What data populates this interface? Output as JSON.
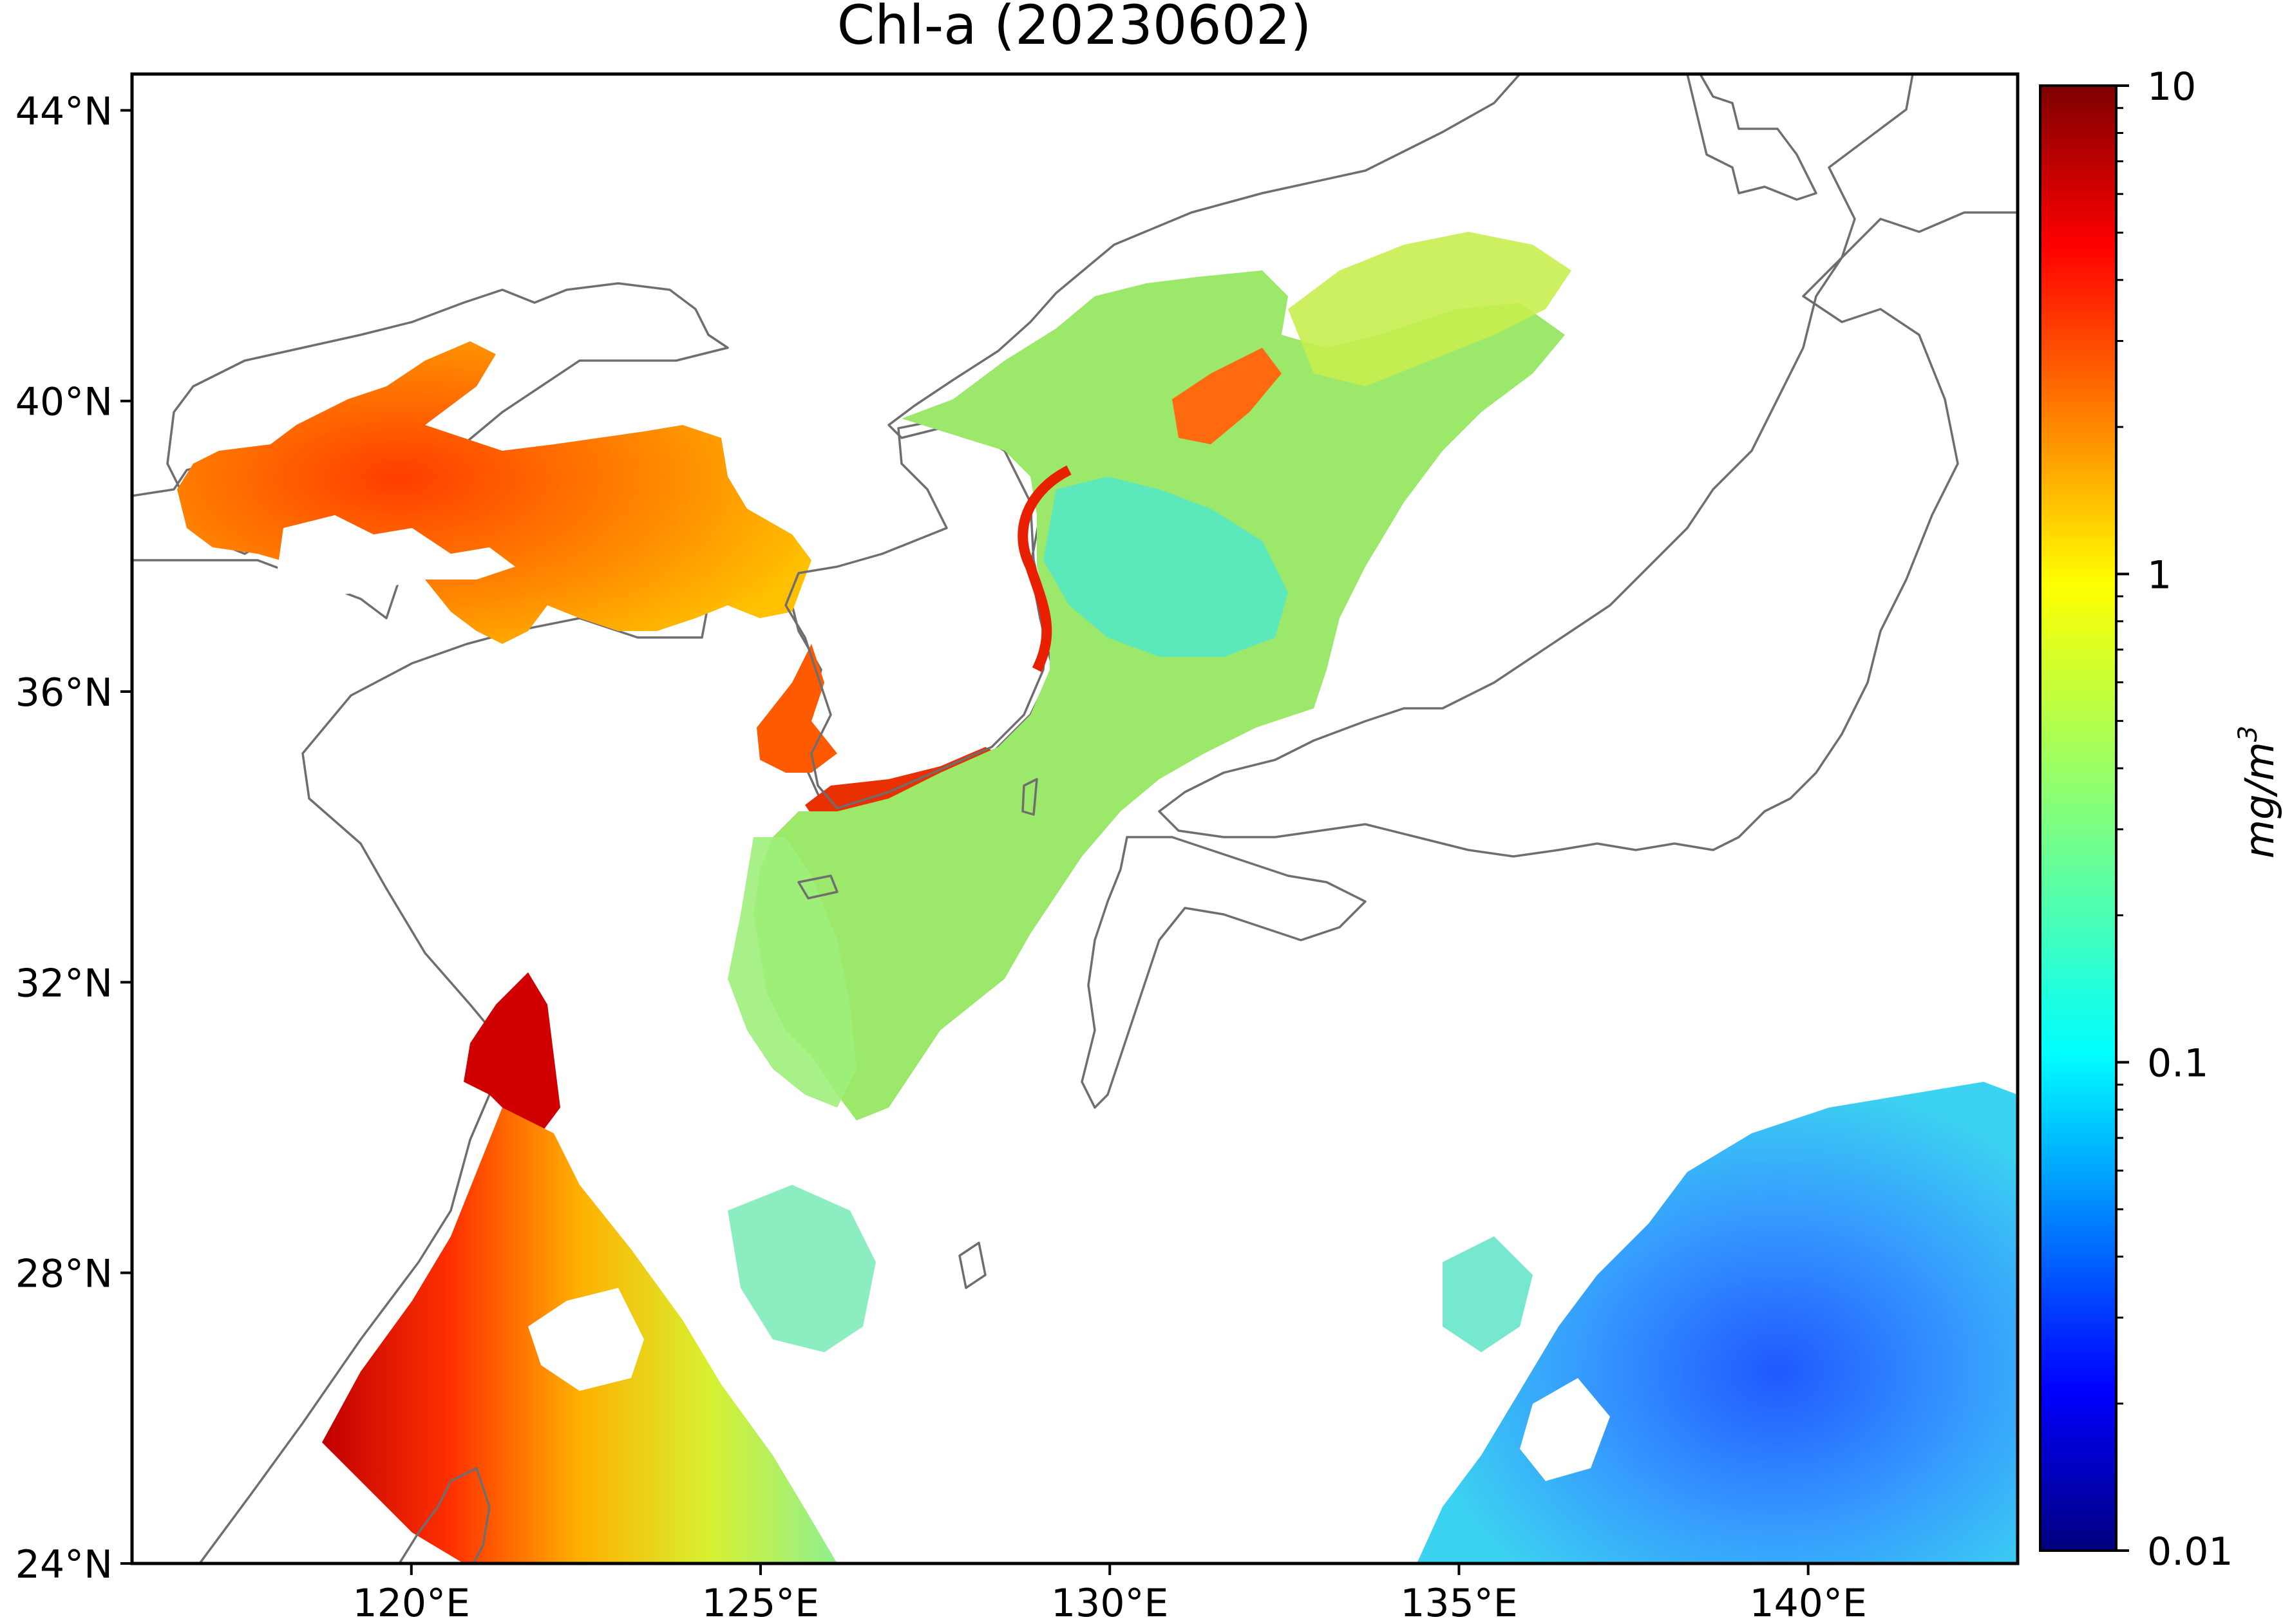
{
  "figure": {
    "title": "Chl-a (20230602)",
    "land_color": "#f1f3c8",
    "ocean_no_data_color": "#ffffff",
    "coastline_color": "#6e6e6e"
  },
  "map": {
    "projection": "equirectangular",
    "lon_range": [
      116.0,
      143.0
    ],
    "lat_range": [
      24.0,
      44.5
    ],
    "y_ticks": [
      {
        "value": 24,
        "label": "24°N"
      },
      {
        "value": 28,
        "label": "28°N"
      },
      {
        "value": 32,
        "label": "32°N"
      },
      {
        "value": 36,
        "label": "36°N"
      },
      {
        "value": 40,
        "label": "40°N"
      },
      {
        "value": 44,
        "label": "44°N"
      }
    ],
    "x_ticks": [
      {
        "value": 120,
        "label": "120°E"
      },
      {
        "value": 125,
        "label": "125°E"
      },
      {
        "value": 130,
        "label": "130°E"
      },
      {
        "value": 135,
        "label": "135°E"
      },
      {
        "value": 140,
        "label": "140°E"
      }
    ]
  },
  "colorbar": {
    "colormap": "jet",
    "scale": "log",
    "range": [
      0.01,
      10
    ],
    "unit_label_base": "mg/m",
    "unit_label_exp": "3",
    "ticks": [
      {
        "value": 10,
        "label": "10"
      },
      {
        "value": 1,
        "label": "1"
      },
      {
        "value": 0.1,
        "label": "0.1"
      },
      {
        "value": 0.01,
        "label": "0.01"
      }
    ],
    "stops": [
      "#00007f",
      "#0000ff",
      "#007fff",
      "#00ffff",
      "#7fff7f",
      "#ffff00",
      "#ff7f00",
      "#ff0000",
      "#7f0000"
    ]
  }
}
